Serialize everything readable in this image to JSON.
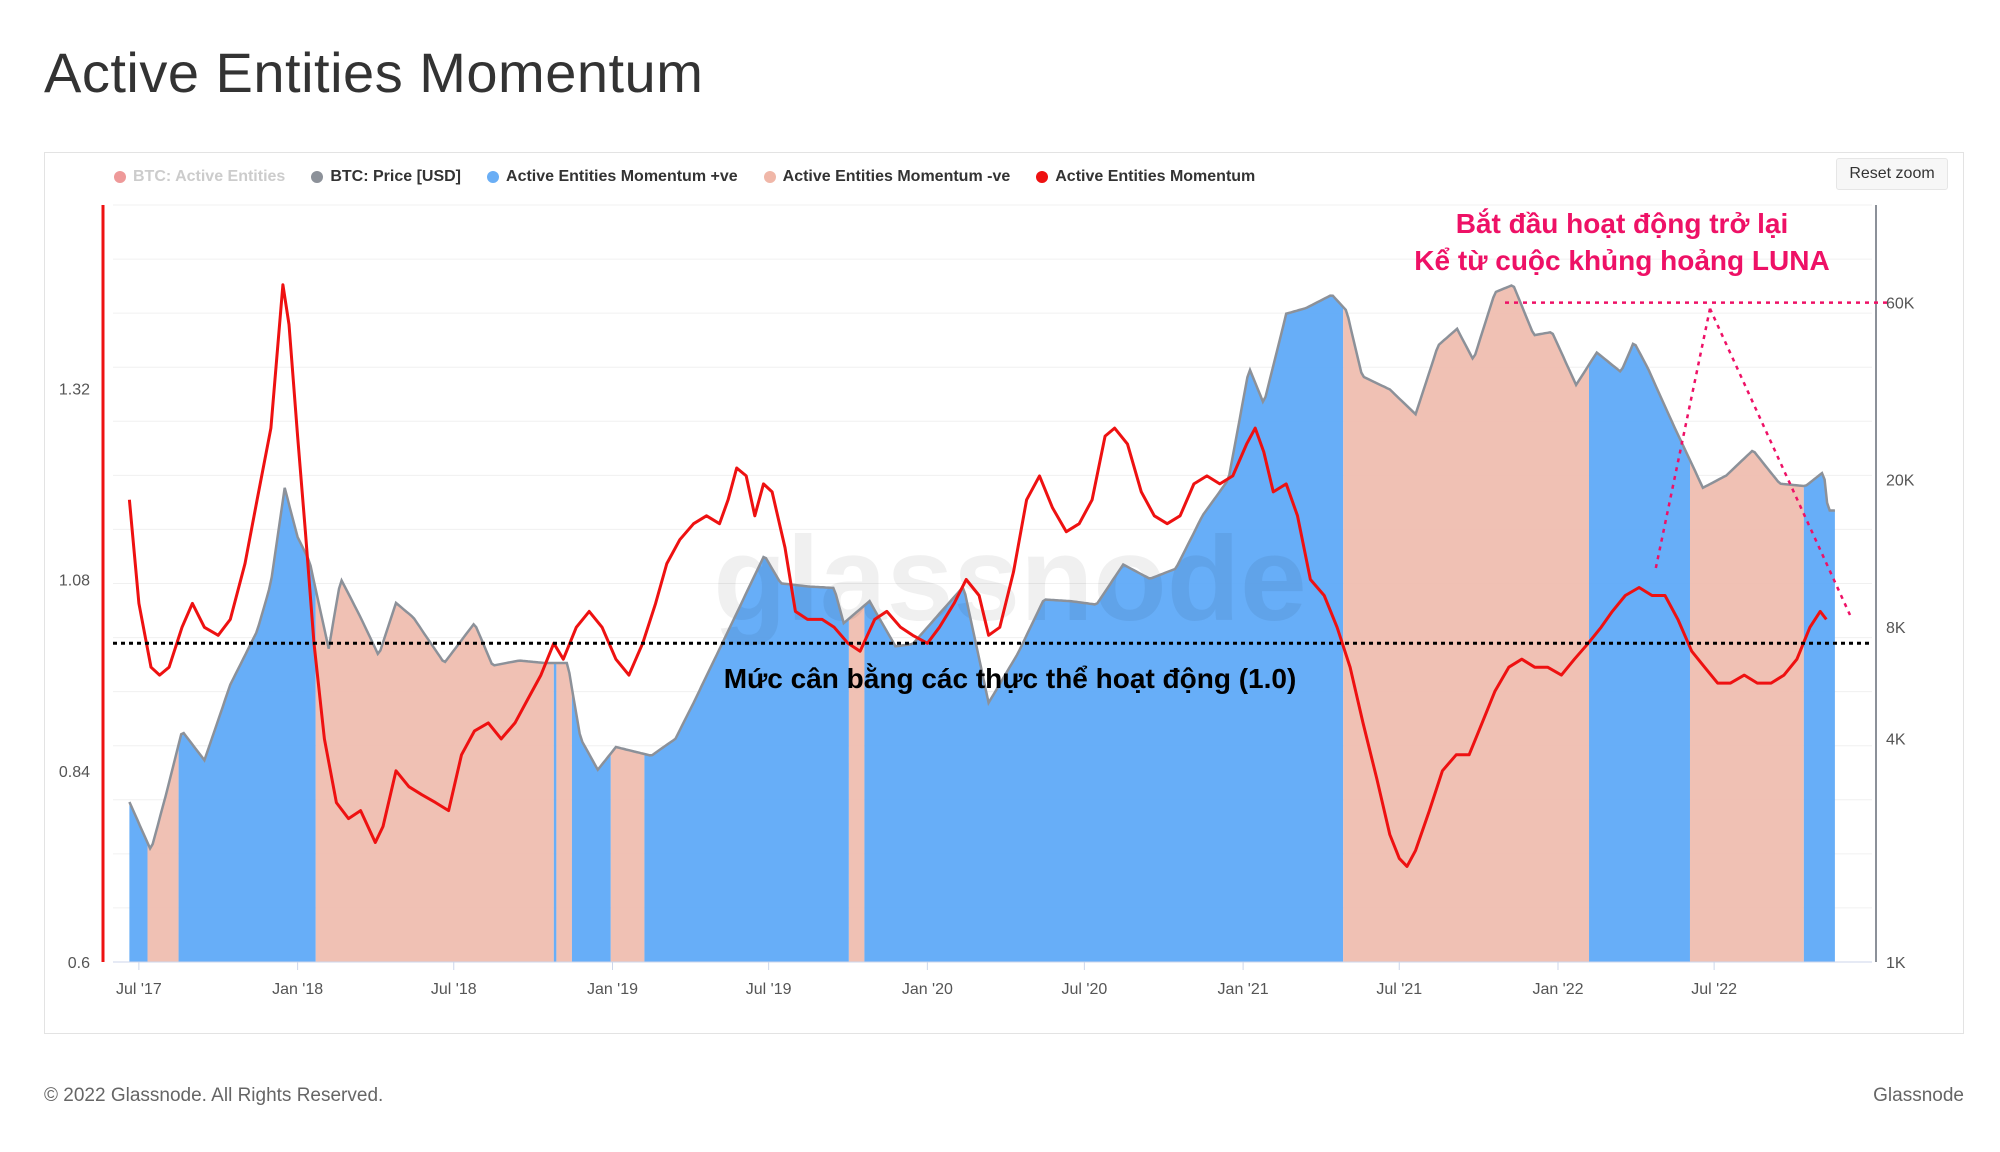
{
  "page": {
    "title": "Active Entities Momentum",
    "footer_copyright": "© 2022 Glassnode. All Rights Reserved.",
    "footer_brand": "Glassnode",
    "reset_zoom_label": "Reset zoom",
    "watermark": "glassnode"
  },
  "legend": [
    {
      "label": "BTC: Active Entities",
      "color": "#ff4d4d",
      "hidden": true
    },
    {
      "label": "BTC: Price [USD]",
      "color": "#8c9199",
      "hidden": false
    },
    {
      "label": "Active Entities Momentum +ve",
      "color": "#6aaef5",
      "hidden": false
    },
    {
      "label": "Active Entities Momentum -ve",
      "color": "#f0b7a8",
      "hidden": false
    },
    {
      "label": "Active Entities Momentum",
      "color": "#ee1111",
      "hidden": false
    }
  ],
  "colors": {
    "positive_fill": "#5aa7f7",
    "negative_fill": "#efbcae",
    "momentum_line": "#ee1111",
    "price_line": "#8c9199",
    "annotation": "#ee1166",
    "equilibrium_line": "#000000"
  },
  "annotations": {
    "luna_line1": "Bắt đầu hoạt động trở lại",
    "luna_line2": "Kể từ cuộc khủng hoảng LUNA",
    "equilibrium_label": "Mức cân bằng các thực thể hoạt động (1.0)"
  },
  "chart_data": {
    "type": "line",
    "title": "Active Entities Momentum",
    "x_ticks": [
      "Jul '17",
      "Jan '18",
      "Jul '18",
      "Jan '19",
      "Jul '19",
      "Jan '20",
      "Jul '20",
      "Jan '21",
      "Jul '21",
      "Jan '22",
      "Jul '22"
    ],
    "x_tick_dates": [
      "2017-07-01",
      "2018-01-01",
      "2018-07-01",
      "2019-01-01",
      "2019-07-01",
      "2020-01-01",
      "2020-07-01",
      "2021-01-01",
      "2021-07-01",
      "2022-01-01",
      "2022-07-01"
    ],
    "x_range": [
      "2017-06-01",
      "2022-12-31"
    ],
    "y_left_ticks": [
      "0.6",
      "0.84",
      "1.08",
      "1.32"
    ],
    "y_left_range": [
      0.6,
      1.55
    ],
    "y_left_scale": "linear",
    "y_right_ticks": [
      "1K",
      "4K",
      "8K",
      "20K",
      "60K"
    ],
    "y_right_range": [
      1000,
      110000
    ],
    "y_right_scale": "log",
    "equilibrium_level": 1.0,
    "series": [
      {
        "name": "Active Entities Momentum",
        "axis": "left",
        "points": [
          [
            "2017-06-20",
            1.18
          ],
          [
            "2017-07-01",
            1.05
          ],
          [
            "2017-07-15",
            0.97
          ],
          [
            "2017-07-25",
            0.96
          ],
          [
            "2017-08-05",
            0.97
          ],
          [
            "2017-08-20",
            1.02
          ],
          [
            "2017-09-01",
            1.05
          ],
          [
            "2017-09-15",
            1.02
          ],
          [
            "2017-10-01",
            1.01
          ],
          [
            "2017-10-15",
            1.03
          ],
          [
            "2017-11-01",
            1.1
          ],
          [
            "2017-11-15",
            1.18
          ],
          [
            "2017-12-01",
            1.27
          ],
          [
            "2017-12-15",
            1.45
          ],
          [
            "2017-12-22",
            1.4
          ],
          [
            "2018-01-01",
            1.26
          ],
          [
            "2018-01-10",
            1.14
          ],
          [
            "2018-01-20",
            1.0
          ],
          [
            "2018-02-01",
            0.88
          ],
          [
            "2018-02-15",
            0.8
          ],
          [
            "2018-03-01",
            0.78
          ],
          [
            "2018-03-15",
            0.79
          ],
          [
            "2018-04-01",
            0.75
          ],
          [
            "2018-04-10",
            0.77
          ],
          [
            "2018-04-25",
            0.84
          ],
          [
            "2018-05-10",
            0.82
          ],
          [
            "2018-05-25",
            0.81
          ],
          [
            "2018-06-10",
            0.8
          ],
          [
            "2018-06-25",
            0.79
          ],
          [
            "2018-07-10",
            0.86
          ],
          [
            "2018-07-25",
            0.89
          ],
          [
            "2018-08-10",
            0.9
          ],
          [
            "2018-08-25",
            0.88
          ],
          [
            "2018-09-10",
            0.9
          ],
          [
            "2018-09-25",
            0.93
          ],
          [
            "2018-10-10",
            0.96
          ],
          [
            "2018-10-25",
            1.0
          ],
          [
            "2018-11-05",
            0.98
          ],
          [
            "2018-11-20",
            1.02
          ],
          [
            "2018-12-05",
            1.04
          ],
          [
            "2018-12-20",
            1.02
          ],
          [
            "2019-01-05",
            0.98
          ],
          [
            "2019-01-20",
            0.96
          ],
          [
            "2019-02-05",
            1.0
          ],
          [
            "2019-02-20",
            1.05
          ],
          [
            "2019-03-05",
            1.1
          ],
          [
            "2019-03-20",
            1.13
          ],
          [
            "2019-04-05",
            1.15
          ],
          [
            "2019-04-20",
            1.16
          ],
          [
            "2019-05-05",
            1.15
          ],
          [
            "2019-05-15",
            1.18
          ],
          [
            "2019-05-25",
            1.22
          ],
          [
            "2019-06-05",
            1.21
          ],
          [
            "2019-06-15",
            1.16
          ],
          [
            "2019-06-25",
            1.2
          ],
          [
            "2019-07-05",
            1.19
          ],
          [
            "2019-07-20",
            1.12
          ],
          [
            "2019-08-01",
            1.04
          ],
          [
            "2019-08-15",
            1.03
          ],
          [
            "2019-09-01",
            1.03
          ],
          [
            "2019-09-15",
            1.02
          ],
          [
            "2019-10-01",
            1.0
          ],
          [
            "2019-10-15",
            0.99
          ],
          [
            "2019-11-01",
            1.03
          ],
          [
            "2019-11-15",
            1.04
          ],
          [
            "2019-12-01",
            1.02
          ],
          [
            "2019-12-15",
            1.01
          ],
          [
            "2020-01-01",
            1.0
          ],
          [
            "2020-01-15",
            1.02
          ],
          [
            "2020-02-01",
            1.05
          ],
          [
            "2020-02-15",
            1.08
          ],
          [
            "2020-03-01",
            1.06
          ],
          [
            "2020-03-12",
            1.01
          ],
          [
            "2020-03-25",
            1.02
          ],
          [
            "2020-04-10",
            1.09
          ],
          [
            "2020-04-25",
            1.18
          ],
          [
            "2020-05-10",
            1.21
          ],
          [
            "2020-05-25",
            1.17
          ],
          [
            "2020-06-10",
            1.14
          ],
          [
            "2020-06-25",
            1.15
          ],
          [
            "2020-07-10",
            1.18
          ],
          [
            "2020-07-25",
            1.26
          ],
          [
            "2020-08-05",
            1.27
          ],
          [
            "2020-08-20",
            1.25
          ],
          [
            "2020-09-05",
            1.19
          ],
          [
            "2020-09-20",
            1.16
          ],
          [
            "2020-10-05",
            1.15
          ],
          [
            "2020-10-20",
            1.16
          ],
          [
            "2020-11-05",
            1.2
          ],
          [
            "2020-11-20",
            1.21
          ],
          [
            "2020-12-05",
            1.2
          ],
          [
            "2020-12-20",
            1.21
          ],
          [
            "2021-01-05",
            1.25
          ],
          [
            "2021-01-15",
            1.27
          ],
          [
            "2021-01-25",
            1.24
          ],
          [
            "2021-02-05",
            1.19
          ],
          [
            "2021-02-20",
            1.2
          ],
          [
            "2021-03-05",
            1.16
          ],
          [
            "2021-03-20",
            1.08
          ],
          [
            "2021-04-05",
            1.06
          ],
          [
            "2021-04-20",
            1.02
          ],
          [
            "2021-05-05",
            0.97
          ],
          [
            "2021-05-20",
            0.9
          ],
          [
            "2021-06-05",
            0.83
          ],
          [
            "2021-06-20",
            0.76
          ],
          [
            "2021-07-01",
            0.73
          ],
          [
            "2021-07-10",
            0.72
          ],
          [
            "2021-07-20",
            0.74
          ],
          [
            "2021-08-05",
            0.79
          ],
          [
            "2021-08-20",
            0.84
          ],
          [
            "2021-09-05",
            0.86
          ],
          [
            "2021-09-20",
            0.86
          ],
          [
            "2021-10-05",
            0.9
          ],
          [
            "2021-10-20",
            0.94
          ],
          [
            "2021-11-05",
            0.97
          ],
          [
            "2021-11-20",
            0.98
          ],
          [
            "2021-12-05",
            0.97
          ],
          [
            "2021-12-20",
            0.97
          ],
          [
            "2022-01-05",
            0.96
          ],
          [
            "2022-01-20",
            0.98
          ],
          [
            "2022-02-05",
            1.0
          ],
          [
            "2022-02-20",
            1.02
          ],
          [
            "2022-03-05",
            1.04
          ],
          [
            "2022-03-20",
            1.06
          ],
          [
            "2022-04-05",
            1.07
          ],
          [
            "2022-04-20",
            1.06
          ],
          [
            "2022-05-05",
            1.06
          ],
          [
            "2022-05-20",
            1.03
          ],
          [
            "2022-06-05",
            0.99
          ],
          [
            "2022-06-20",
            0.97
          ],
          [
            "2022-07-05",
            0.95
          ],
          [
            "2022-07-20",
            0.95
          ],
          [
            "2022-08-05",
            0.96
          ],
          [
            "2022-08-20",
            0.95
          ],
          [
            "2022-09-05",
            0.95
          ],
          [
            "2022-09-20",
            0.96
          ],
          [
            "2022-10-05",
            0.98
          ],
          [
            "2022-10-20",
            1.02
          ],
          [
            "2022-11-01",
            1.04
          ],
          [
            "2022-11-08",
            1.03
          ]
        ]
      },
      {
        "name": "BTC: Price [USD]",
        "axis": "right",
        "points": [
          [
            "2017-06-20",
            2700
          ],
          [
            "2017-07-15",
            2000
          ],
          [
            "2017-08-01",
            2800
          ],
          [
            "2017-08-20",
            4200
          ],
          [
            "2017-09-15",
            3500
          ],
          [
            "2017-10-15",
            5600
          ],
          [
            "2017-11-15",
            7800
          ],
          [
            "2017-12-01",
            10500
          ],
          [
            "2017-12-17",
            19000
          ],
          [
            "2018-01-01",
            14000
          ],
          [
            "2018-01-15",
            12000
          ],
          [
            "2018-02-06",
            7000
          ],
          [
            "2018-02-20",
            10800
          ],
          [
            "2018-03-15",
            8500
          ],
          [
            "2018-04-05",
            6700
          ],
          [
            "2018-04-25",
            9300
          ],
          [
            "2018-05-15",
            8500
          ],
          [
            "2018-06-20",
            6400
          ],
          [
            "2018-07-25",
            8200
          ],
          [
            "2018-08-15",
            6300
          ],
          [
            "2018-09-15",
            6500
          ],
          [
            "2018-10-15",
            6400
          ],
          [
            "2018-11-10",
            6400
          ],
          [
            "2018-11-25",
            4000
          ],
          [
            "2018-12-15",
            3300
          ],
          [
            "2019-01-05",
            3800
          ],
          [
            "2019-02-15",
            3600
          ],
          [
            "2019-03-15",
            4000
          ],
          [
            "2019-04-05",
            5000
          ],
          [
            "2019-05-15",
            7800
          ],
          [
            "2019-06-26",
            12500
          ],
          [
            "2019-07-15",
            10500
          ],
          [
            "2019-08-15",
            10300
          ],
          [
            "2019-09-15",
            10200
          ],
          [
            "2019-09-26",
            8200
          ],
          [
            "2019-10-26",
            9400
          ],
          [
            "2019-11-25",
            7100
          ],
          [
            "2019-12-15",
            7200
          ],
          [
            "2020-01-15",
            8700
          ],
          [
            "2020-02-12",
            10300
          ],
          [
            "2020-03-12",
            5000
          ],
          [
            "2020-04-15",
            6800
          ],
          [
            "2020-05-15",
            9500
          ],
          [
            "2020-06-15",
            9400
          ],
          [
            "2020-07-15",
            9200
          ],
          [
            "2020-08-15",
            11800
          ],
          [
            "2020-09-15",
            10800
          ],
          [
            "2020-10-15",
            11500
          ],
          [
            "2020-11-15",
            16000
          ],
          [
            "2020-12-15",
            20000
          ],
          [
            "2021-01-08",
            40000
          ],
          [
            "2021-01-25",
            32000
          ],
          [
            "2021-02-20",
            56000
          ],
          [
            "2021-03-15",
            58000
          ],
          [
            "2021-04-14",
            63000
          ],
          [
            "2021-05-01",
            57000
          ],
          [
            "2021-05-19",
            38000
          ],
          [
            "2021-06-20",
            35000
          ],
          [
            "2021-07-20",
            30000
          ],
          [
            "2021-08-15",
            46000
          ],
          [
            "2021-09-06",
            51000
          ],
          [
            "2021-09-25",
            42000
          ],
          [
            "2021-10-20",
            64000
          ],
          [
            "2021-11-10",
            67000
          ],
          [
            "2021-12-04",
            49000
          ],
          [
            "2021-12-25",
            50000
          ],
          [
            "2022-01-22",
            36000
          ],
          [
            "2022-02-15",
            44000
          ],
          [
            "2022-03-15",
            39000
          ],
          [
            "2022-03-30",
            47000
          ],
          [
            "2022-04-15",
            40000
          ],
          [
            "2022-05-12",
            29000
          ],
          [
            "2022-06-18",
            19000
          ],
          [
            "2022-07-15",
            20500
          ],
          [
            "2022-08-15",
            24000
          ],
          [
            "2022-09-15",
            19500
          ],
          [
            "2022-10-15",
            19200
          ],
          [
            "2022-11-05",
            21000
          ],
          [
            "2022-11-10",
            16500
          ],
          [
            "2022-11-20",
            16500
          ]
        ]
      }
    ],
    "fill_note_positive": "Active Entities Momentum +ve",
    "fill_note_negative": "Active Entities Momentum -ve"
  }
}
